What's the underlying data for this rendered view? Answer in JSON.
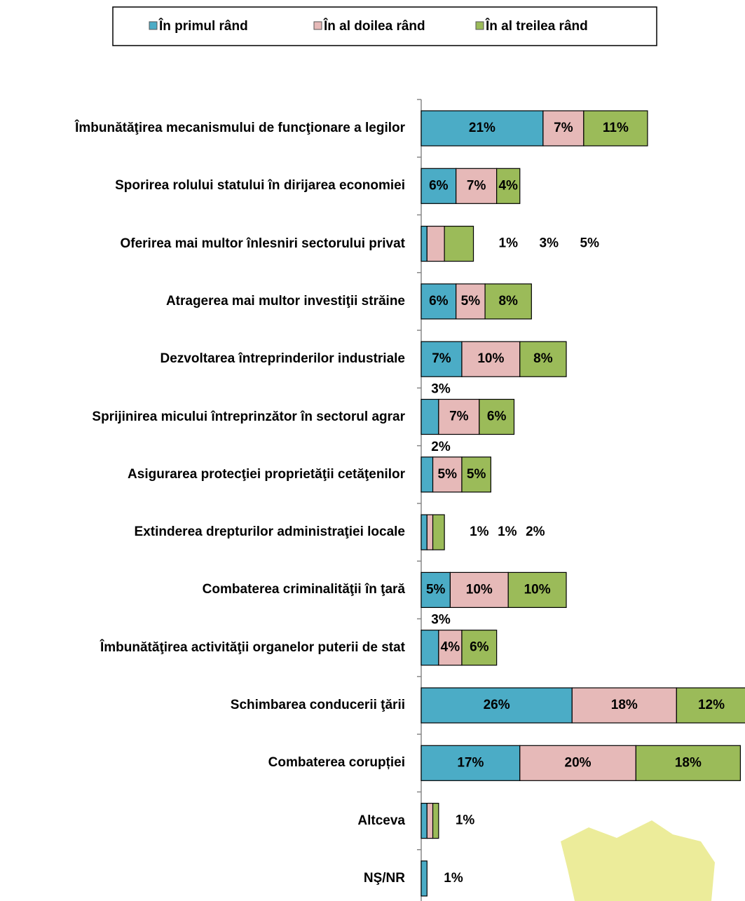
{
  "chart_data": {
    "type": "stacked-bar-horizontal",
    "categories": [
      "Îmbunătăţirea mecanismului de funcţionare a legilor",
      "Sporirea rolului statului în dirijarea economiei",
      "Oferirea mai multor înlesniri sectorului privat",
      "Atragerea mai multor investiţii străine",
      "Dezvoltarea întreprinderilor industriale",
      "Sprijinirea micului întreprinzător în sectorul agrar",
      "Asigurarea protecţiei proprietăţii cetăţenilor",
      "Extinderea drepturilor administraţiei locale",
      "Combaterea criminalităţii în ţară",
      "Îmbunătăţirea activităţii organelor puterii de stat",
      "Schimbarea conducerii ţării",
      "Combaterea corupției",
      "Altceva",
      "NŞ/NR"
    ],
    "series": [
      {
        "name": "În primul rând",
        "color": "#4bacc6",
        "values": [
          21,
          6,
          1,
          6,
          7,
          3,
          2,
          1,
          5,
          3,
          26,
          17,
          1,
          1
        ],
        "value_labels": [
          "21%",
          "6%",
          "1%",
          "6%",
          "7%",
          "3%",
          "2%",
          "1%",
          "5%",
          "3%",
          "26%",
          "17%",
          "1%",
          "1%"
        ]
      },
      {
        "name": "În al doilea rând",
        "color": "#e6b9b8",
        "values": [
          7,
          7,
          3,
          5,
          10,
          7,
          5,
          1,
          10,
          4,
          18,
          20,
          1,
          null
        ],
        "value_labels": [
          "7%",
          "7%",
          "3%",
          "5%",
          "10%",
          "7%",
          "5%",
          "1%",
          "10%",
          "4%",
          "18%",
          "20%",
          null,
          null
        ]
      },
      {
        "name": "În al treilea rând",
        "color": "#9bbb59",
        "values": [
          11,
          4,
          5,
          8,
          8,
          6,
          5,
          2,
          10,
          6,
          12,
          18,
          1,
          null
        ],
        "value_labels": [
          "11%",
          "4%",
          "5%",
          "8%",
          "8%",
          "6%",
          "5%",
          "2%",
          "10%",
          "6%",
          "12%",
          "18%",
          null,
          null
        ]
      }
    ],
    "legend": "top"
  }
}
